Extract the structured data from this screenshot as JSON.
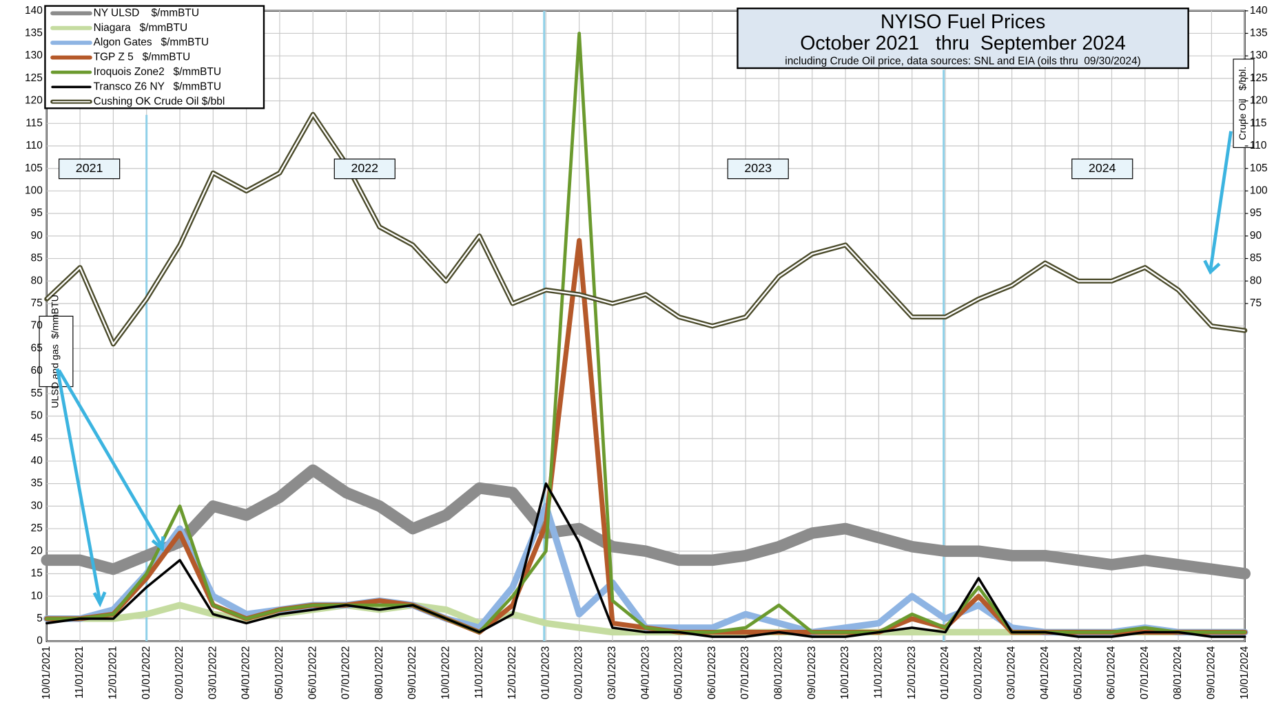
{
  "chart_data": {
    "type": "line",
    "title": [
      "NYISO Fuel Prices",
      "October 2021   thru  September 2024"
    ],
    "subtitle": "including Crude Oil price, data sources: SNL and EIA (oils thru  09/30/2024)",
    "y_label": "ULSD and gas  $/mmBTU",
    "y2_label": "Crude Oil   $/bbl.",
    "annotations": [
      "2021",
      "2022",
      "2023",
      "2024"
    ],
    "categories": [
      "10/01/2021",
      "11/01/2021",
      "12/01/2021",
      "01/01/2022",
      "02/01/2022",
      "03/01/2022",
      "04/01/2022",
      "05/01/2022",
      "06/01/2022",
      "07/01/2022",
      "08/01/2022",
      "09/01/2022",
      "10/01/2022",
      "11/01/2022",
      "12/01/2022",
      "01/01/2023",
      "02/01/2023",
      "03/01/2023",
      "04/01/2023",
      "05/01/2023",
      "06/01/2023",
      "07/01/2023",
      "08/01/2023",
      "09/01/2023",
      "10/01/2023",
      "11/01/2023",
      "12/01/2023",
      "01/01/2024",
      "02/01/2024",
      "03/01/2024",
      "04/01/2024",
      "05/01/2024",
      "06/01/2024",
      "07/01/2024",
      "08/01/2024",
      "09/01/2024",
      "10/01/2024"
    ],
    "series": [
      {
        "name": "NY ULSD    $/mmBTU",
        "color": "#8c8c8c",
        "values": [
          18,
          18,
          16,
          19,
          22,
          30,
          28,
          32,
          38,
          33,
          30,
          25,
          28,
          34,
          33,
          24,
          25,
          21,
          20,
          18,
          18,
          19,
          21,
          24,
          25,
          23,
          21,
          20,
          20,
          19,
          19,
          18,
          17,
          18,
          17,
          16,
          15
        ]
      },
      {
        "name": "Niagara   $/mmBTU",
        "color": "#c5dca0",
        "values": [
          5,
          5,
          5,
          6,
          8,
          6,
          5,
          6,
          7,
          8,
          7,
          8,
          7,
          4,
          6,
          4,
          3,
          2,
          2,
          2,
          2,
          2,
          2,
          2,
          2,
          2,
          2,
          2,
          2,
          2,
          2,
          2,
          2,
          2,
          2,
          2,
          2
        ]
      },
      {
        "name": "Algon Gates   $/mmBTU",
        "color": "#8eb4e3",
        "values": [
          5,
          5,
          7,
          15,
          25,
          10,
          6,
          7,
          8,
          8,
          9,
          8,
          5,
          3,
          12,
          30,
          6,
          13,
          3,
          3,
          3,
          6,
          4,
          2,
          3,
          4,
          10,
          5,
          8,
          3,
          2,
          2,
          2,
          3,
          2,
          2,
          2
        ]
      },
      {
        "name": "TGP Z 5   $/mmBTU",
        "color": "#b5592a",
        "values": [
          5,
          5,
          6,
          14,
          24,
          8,
          5,
          7,
          8,
          8,
          9,
          8,
          5,
          2,
          8,
          26,
          89,
          4,
          3,
          2,
          2,
          2,
          2,
          2,
          2,
          2,
          5,
          3,
          10,
          2,
          2,
          2,
          2,
          2,
          2,
          2,
          2
        ]
      },
      {
        "name": "Iroquois Zone2   $/mmBTU",
        "color": "#6b9a2e",
        "values": [
          5,
          5,
          6,
          15,
          30,
          8,
          5,
          7,
          8,
          8,
          8,
          8,
          5,
          2,
          10,
          20,
          135,
          9,
          3,
          2,
          2,
          3,
          8,
          2,
          2,
          2,
          6,
          3,
          12,
          2,
          2,
          2,
          2,
          3,
          2,
          2,
          2
        ]
      },
      {
        "name": "Transco Z6 NY   $/mmBTU",
        "color": "#000000",
        "values": [
          4,
          5,
          5,
          12,
          18,
          6,
          4,
          6,
          7,
          8,
          7,
          8,
          5,
          2,
          6,
          35,
          22,
          3,
          2,
          2,
          1,
          1,
          2,
          1,
          1,
          2,
          3,
          2,
          14,
          2,
          2,
          1,
          1,
          2,
          2,
          1,
          1
        ]
      },
      {
        "name": "Cushing OK Crude Oil $/bbl",
        "color": "#4a4a2a",
        "axis": "y2",
        "values": [
          76,
          83,
          66,
          76,
          88,
          104,
          100,
          104,
          117,
          106,
          92,
          88,
          80,
          90,
          75,
          78,
          77,
          75,
          77,
          72,
          70,
          72,
          81,
          86,
          88,
          80,
          72,
          72,
          76,
          79,
          84,
          80,
          80,
          83,
          78,
          70,
          69
        ]
      }
    ],
    "ylim": [
      0,
      140
    ],
    "yticks": [
      0,
      5,
      10,
      15,
      20,
      25,
      30,
      35,
      40,
      45,
      50,
      55,
      60,
      65,
      70,
      75,
      80,
      85,
      90,
      95,
      100,
      105,
      110,
      115,
      120,
      125,
      130,
      135,
      140
    ],
    "y2lim": [
      0,
      140
    ],
    "y2ticks": [
      75,
      80,
      85,
      90,
      95,
      100,
      105,
      110,
      115,
      120,
      125,
      130,
      135,
      140
    ],
    "grid": true
  }
}
